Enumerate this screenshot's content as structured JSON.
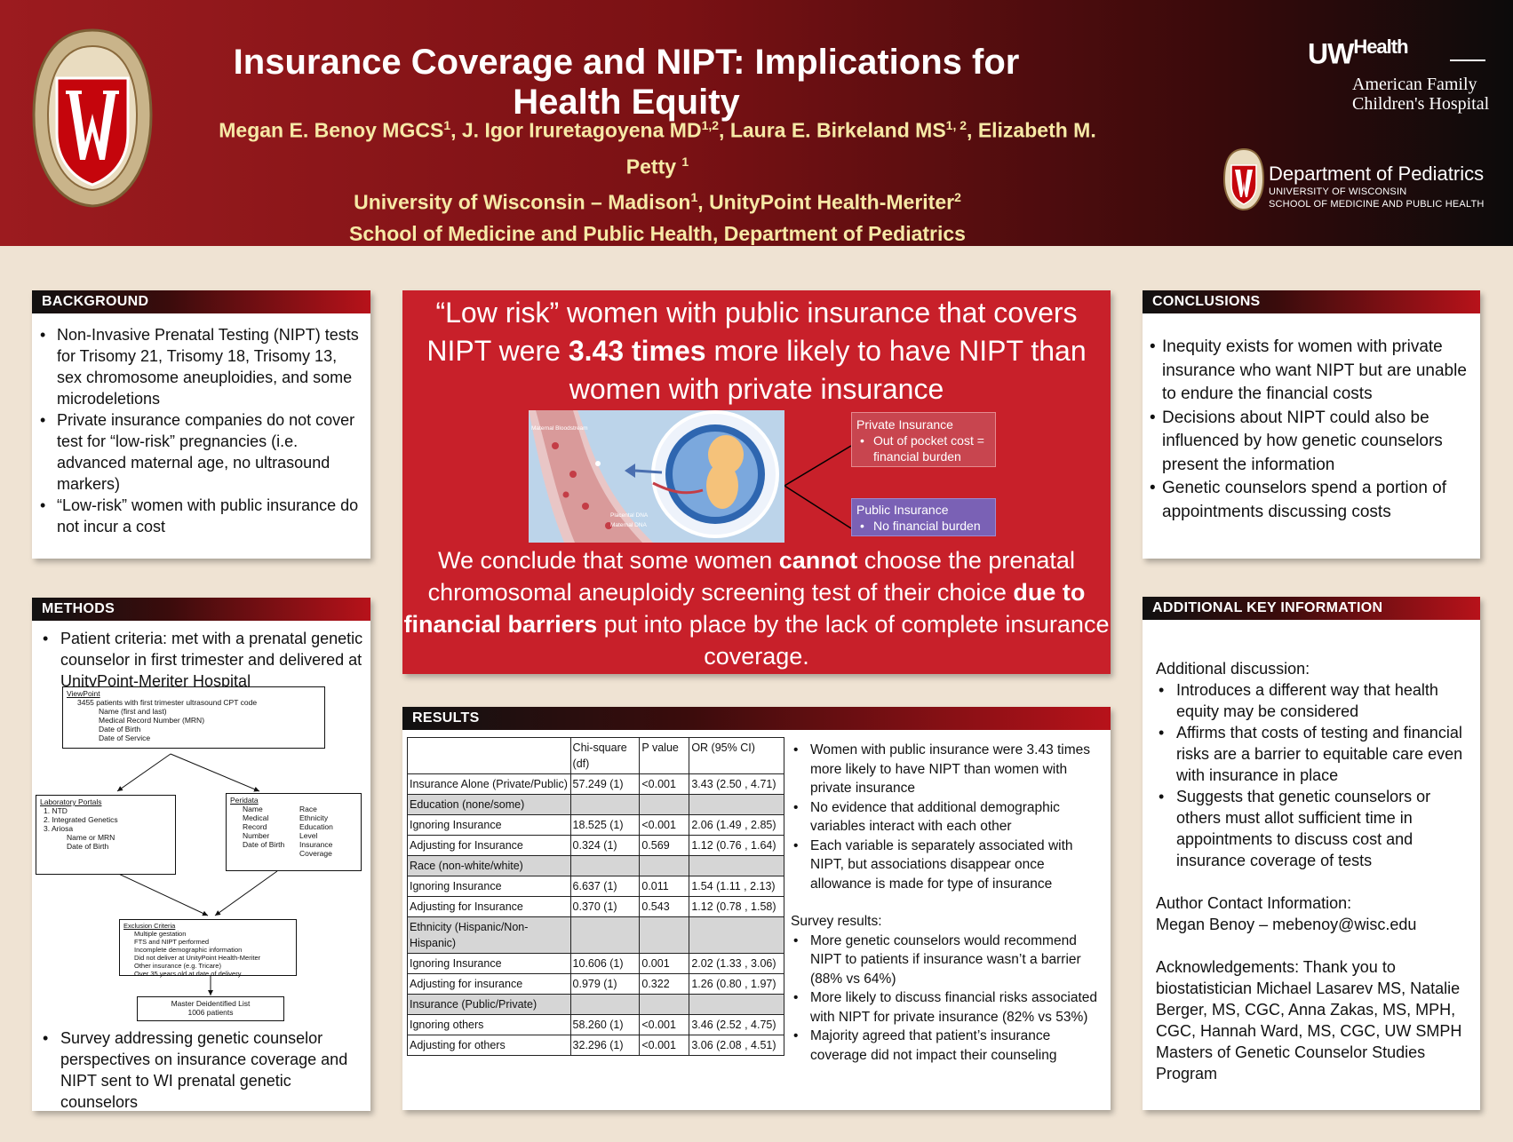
{
  "header": {
    "title": "Insurance Coverage and NIPT: Implications for Health Equity",
    "authors": [
      {
        "name": "Megan E. Benoy MGCS",
        "sup": "1"
      },
      {
        "name": "J. Igor Iruretagoyena MD",
        "sup": "1,2"
      },
      {
        "name": "Laura E. Birkeland MS",
        "sup": "1, 2"
      },
      {
        "name": "Elizabeth M. Petty",
        "sup": "1"
      }
    ],
    "affiliation_line": {
      "a": "University of Wisconsin – Madison",
      "a_sup": "1",
      "b": "UnityPoint Health-Meriter",
      "b_sup": "2"
    },
    "school_line": "School of Medicine and Public Health, Department of Pediatrics",
    "uwhealth": {
      "uw": "UW",
      "health": "Health",
      "line1": "American Family",
      "line2": "Children's Hospital"
    },
    "dept": {
      "title": "Department of Pediatrics",
      "line1": "UNIVERSITY OF WISCONSIN",
      "line2": "SCHOOL OF MEDICINE AND PUBLIC HEALTH"
    }
  },
  "background": {
    "heading": "BACKGROUND",
    "items": [
      "Non-Invasive Prenatal Testing (NIPT) tests for Trisomy 21, Trisomy 18, Trisomy 13, sex chromosome aneuploidies, and some microdeletions",
      "Private insurance companies do not cover test for “low-risk” pregnancies (i.e. advanced maternal age, no ultrasound markers)",
      "“Low-risk” women with public insurance do not incur a cost"
    ]
  },
  "methods": {
    "heading": "METHODS",
    "criteria": "Patient criteria: met with a prenatal genetic counselor in first trimester and delivered at UnityPoint-Meriter Hospital",
    "flow": {
      "viewpoint_title": "ViewPoint",
      "viewpoint_lines": [
        "3455 patients with first trimester ultrasound CPT code",
        "Name (first and last)",
        "Medical Record Number (MRN)",
        "Date of Birth",
        "Date of Service"
      ],
      "lab_title": "Laboratory Portals",
      "lab_lines": [
        "1.   NTD",
        "2.   Integrated Genetics",
        "3.   Ariosa",
        "Name or MRN",
        "Date of Birth"
      ],
      "peridata_title": "Peridata",
      "peridata_left": [
        "Name",
        "Medical Record Number",
        "Date of Birth"
      ],
      "peridata_right": [
        "Race",
        "Ethnicity",
        "Education Level",
        "Insurance Coverage"
      ],
      "exclusion_title": "Exclusion Criteria",
      "exclusion_lines": [
        "Multiple gestation",
        "FTS and NIPT performed",
        "Incomplete demographic information",
        "Did not deliver at UnityPoint Health-Meriter",
        "Other insurance (e.g. Tricare)",
        "Over 35 years old at date of delivery"
      ],
      "master_line1": "Master Deidentified List",
      "master_line2": "1006 patients"
    },
    "survey": "Survey addressing genetic counselor perspectives on insurance coverage and NIPT sent to WI prenatal genetic counselors"
  },
  "keyfinding": {
    "headline_pre": "“Low risk” women with public insurance that covers NIPT were ",
    "headline_bold": "3.43 times",
    "headline_post": " more likely to have NIPT than women with private insurance",
    "illustration": {
      "bloodstream": "Maternal Bloodstream",
      "placental": "Placental DNA",
      "maternal": "Maternal DNA"
    },
    "private": {
      "title": "Private Insurance",
      "item": "Out of pocket cost = financial burden"
    },
    "public": {
      "title": "Public Insurance",
      "item": "No financial burden"
    },
    "conclude_1": "We conclude that some women ",
    "conclude_bold1": "cannot",
    "conclude_2": " choose the prenatal chromosomal aneuploidy screening test of their choice ",
    "conclude_bold2": "due to financial barriers",
    "conclude_3": " put into place by the lack of complete insurance coverage.",
    "colors": {
      "red": "#c8202a",
      "private": "#c8454f",
      "public": "#7a61b5"
    }
  },
  "results": {
    "heading": "RESULTS",
    "columns": [
      "",
      "Chi-square (df)",
      "P value",
      "OR (95% CI)"
    ],
    "rows": [
      {
        "type": "row",
        "cells": [
          "Insurance Alone (Private/Public)",
          "57.249 (1)",
          "<0.001",
          "3.43 (2.50 , 4.71)"
        ]
      },
      {
        "type": "sec",
        "cells": [
          "Education (none/some)",
          "",
          "",
          ""
        ]
      },
      {
        "type": "row",
        "cells": [
          "Ignoring Insurance",
          "18.525 (1)",
          "<0.001",
          "2.06 (1.49 , 2.85)"
        ]
      },
      {
        "type": "row",
        "cells": [
          "Adjusting for Insurance",
          "0.324 (1)",
          "0.569",
          "1.12 (0.76 , 1.64)"
        ]
      },
      {
        "type": "sec",
        "cells": [
          "Race (non-white/white)",
          "",
          "",
          ""
        ]
      },
      {
        "type": "row",
        "cells": [
          "Ignoring Insurance",
          "6.637 (1)",
          "0.011",
          "1.54 (1.11 , 2.13)"
        ]
      },
      {
        "type": "row",
        "cells": [
          "Adjusting for Insurance",
          "0.370 (1)",
          "0.543",
          "1.12 (0.78 , 1.58)"
        ]
      },
      {
        "type": "sec",
        "cells": [
          "Ethnicity (Hispanic/Non-Hispanic)",
          "",
          "",
          ""
        ]
      },
      {
        "type": "row",
        "cells": [
          "Ignoring Insurance",
          "10.606 (1)",
          "0.001",
          "2.02 (1.33 , 3.06)"
        ]
      },
      {
        "type": "row",
        "cells": [
          "Adjusting for insurance",
          "0.979 (1)",
          "0.322",
          "1.26 (0.80 , 1.97)"
        ]
      },
      {
        "type": "sec",
        "cells": [
          "Insurance (Public/Private)",
          "",
          "",
          ""
        ]
      },
      {
        "type": "row",
        "cells": [
          "Ignoring others",
          "58.260 (1)",
          "<0.001",
          "3.46 (2.52 , 4.75)"
        ]
      },
      {
        "type": "row",
        "cells": [
          "Adjusting for others",
          "32.296 (1)",
          "<0.001",
          "3.06 (2.08 , 4.51)"
        ]
      }
    ],
    "findings": [
      "Women with public insurance were 3.43 times more likely to have NIPT than women with private insurance",
      "No evidence that additional demographic variables interact with each other",
      "Each variable is separately associated with NIPT, but associations disappear once allowance is made for type of insurance"
    ],
    "survey_heading": "Survey results:",
    "survey_items": [
      "More genetic counselors would recommend NIPT to patients if insurance wasn’t a barrier (88% vs 64%)",
      "More likely to discuss financial risks associated with NIPT for private insurance (82% vs 53%)",
      "Majority agreed that patient’s insurance coverage did not impact their counseling"
    ]
  },
  "conclusions": {
    "heading": "CONCLUSIONS",
    "items": [
      "Inequity exists for women with private insurance who want NIPT but are unable to endure the financial costs",
      "Decisions about NIPT could also be influenced by how genetic counselors present the information",
      "Genetic counselors spend a portion of appointments discussing costs"
    ]
  },
  "additional": {
    "heading": "ADDITIONAL KEY INFORMATION",
    "discussion_heading": "Additional discussion:",
    "discussion_items": [
      "Introduces a different way that health equity may be considered",
      "Affirms that costs of testing and financial risks are a barrier to equitable care even with insurance in place",
      "Suggests that genetic counselors or others must allot sufficient  time in appointments to discuss cost and insurance coverage of tests"
    ],
    "contact_heading": "Author Contact Information:",
    "contact": "Megan Benoy – mebenoy@wisc.edu",
    "acknowledgements": "Acknowledgements: Thank you to biostatistician Michael Lasarev MS, Natalie Berger, MS, CGC, Anna Zakas, MS, MPH, CGC, Hannah Ward, MS, CGC, UW SMPH Masters of Genetic Counselor Studies Program"
  }
}
